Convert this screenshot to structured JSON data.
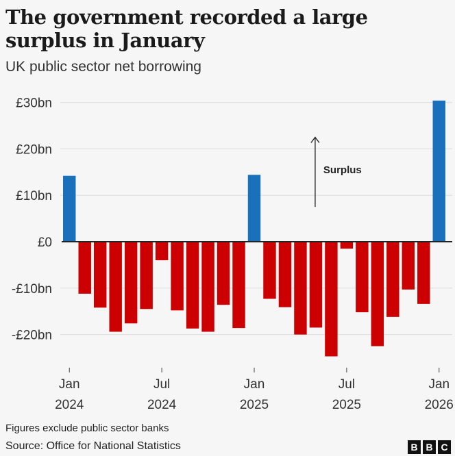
{
  "title": "The government recorded a large surplus in January",
  "subtitle": "UK public sector net borrowing",
  "footnote": "Figures exclude public sector banks",
  "source": "Source: Office for National Statistics",
  "logo": {
    "letters": [
      "B",
      "B",
      "C"
    ]
  },
  "colors": {
    "surplus": "#1a70bb",
    "deficit": "#cc0000",
    "grid": "#dcdcdc",
    "axis": "#222222"
  },
  "chart_data": {
    "type": "bar",
    "title": "The government recorded a large surplus in January",
    "subtitle": "UK public sector net borrowing",
    "xlabel": "",
    "ylabel": "",
    "ylim": [
      -25,
      30
    ],
    "yticks": [
      30,
      20,
      10,
      0,
      -10,
      -20
    ],
    "ytick_labels": [
      "£30bn",
      "£20bn",
      "£10bn",
      "£0",
      "-£10bn",
      "-£20bn"
    ],
    "categories": [
      "Jan 2024",
      "Feb 2024",
      "Mar 2024",
      "Apr 2024",
      "May 2024",
      "Jun 2024",
      "Jul 2024",
      "Aug 2024",
      "Sep 2024",
      "Oct 2024",
      "Nov 2024",
      "Dec 2024",
      "Jan 2025",
      "Feb 2025",
      "Mar 2025",
      "Apr 2025",
      "May 2025",
      "Jun 2025",
      "Jul 2025",
      "Aug 2025",
      "Sep 2025",
      "Oct 2025",
      "Nov 2025",
      "Dec 2025",
      "Jan 2026"
    ],
    "values": [
      14.2,
      -11.2,
      -14.2,
      -19.4,
      -17.6,
      -14.5,
      -4.0,
      -14.8,
      -18.7,
      -19.4,
      -13.6,
      -18.6,
      14.4,
      -12.3,
      -14.1,
      -20.0,
      -18.5,
      -24.7,
      -1.5,
      -15.2,
      -22.5,
      -16.2,
      -10.3,
      -13.4,
      30.4
    ],
    "xtick_labels": [
      {
        "index": 0,
        "month": "Jan",
        "year": "2024"
      },
      {
        "index": 6,
        "month": "Jul",
        "year": "2024"
      },
      {
        "index": 12,
        "month": "Jan",
        "year": "2025"
      },
      {
        "index": 18,
        "month": "Jul",
        "year": "2025"
      },
      {
        "index": 24,
        "month": "Jan",
        "year": "2026"
      }
    ],
    "annotations": [
      {
        "text": "Surplus",
        "type": "arrow-up",
        "at_index": 16,
        "from": 7.5,
        "to": 22.5
      }
    ],
    "grid": true
  }
}
